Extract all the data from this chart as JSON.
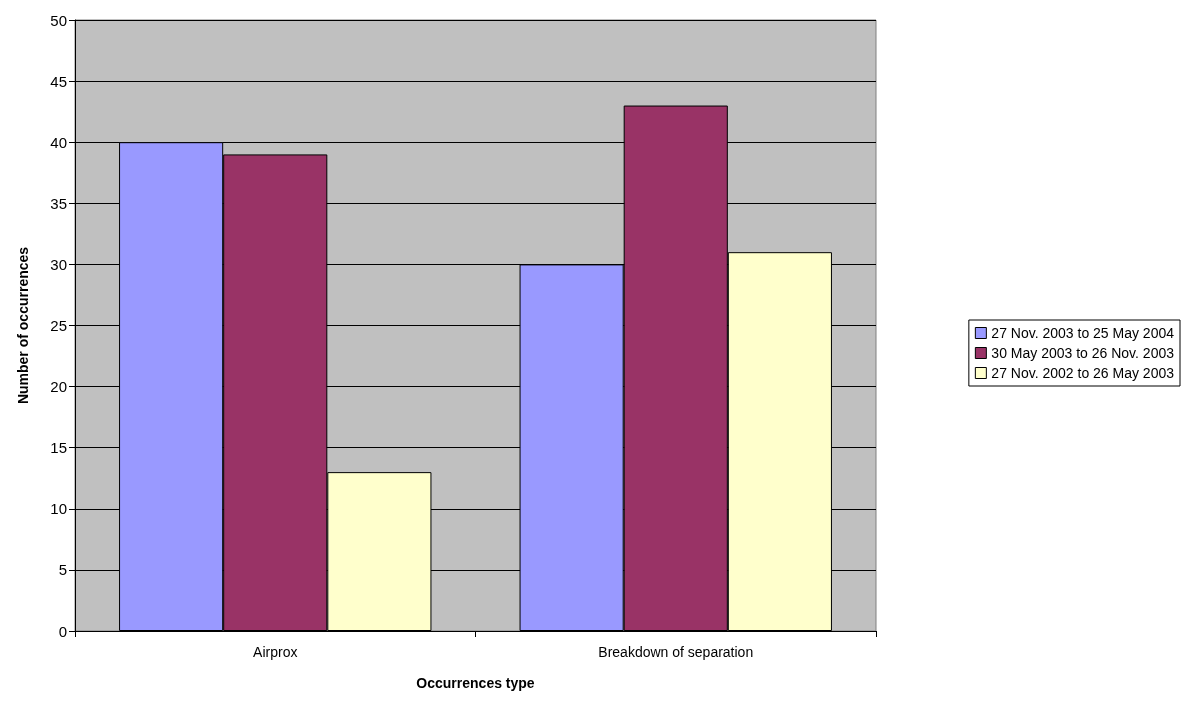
{
  "chart_data": {
    "type": "bar",
    "xlabel": "Occurrences type",
    "ylabel": "Number of occurrences",
    "categories": [
      "Airprox",
      "Breakdown of separation"
    ],
    "series": [
      {
        "name": "27 Nov. 2003 to 25 May 2004",
        "color": "#9999ff",
        "values": [
          40,
          30
        ]
      },
      {
        "name": "30 May 2003 to 26 Nov. 2003",
        "color": "#993366",
        "values": [
          39,
          43
        ]
      },
      {
        "name": "27 Nov. 2002 to 26 May 2003",
        "color": "#ffffcc",
        "values": [
          13,
          31
        ]
      }
    ],
    "ylim": [
      0,
      50
    ],
    "yticks": [
      0,
      5,
      10,
      15,
      20,
      25,
      30,
      35,
      40,
      45,
      50
    ],
    "grid": "y",
    "legend": "right"
  }
}
